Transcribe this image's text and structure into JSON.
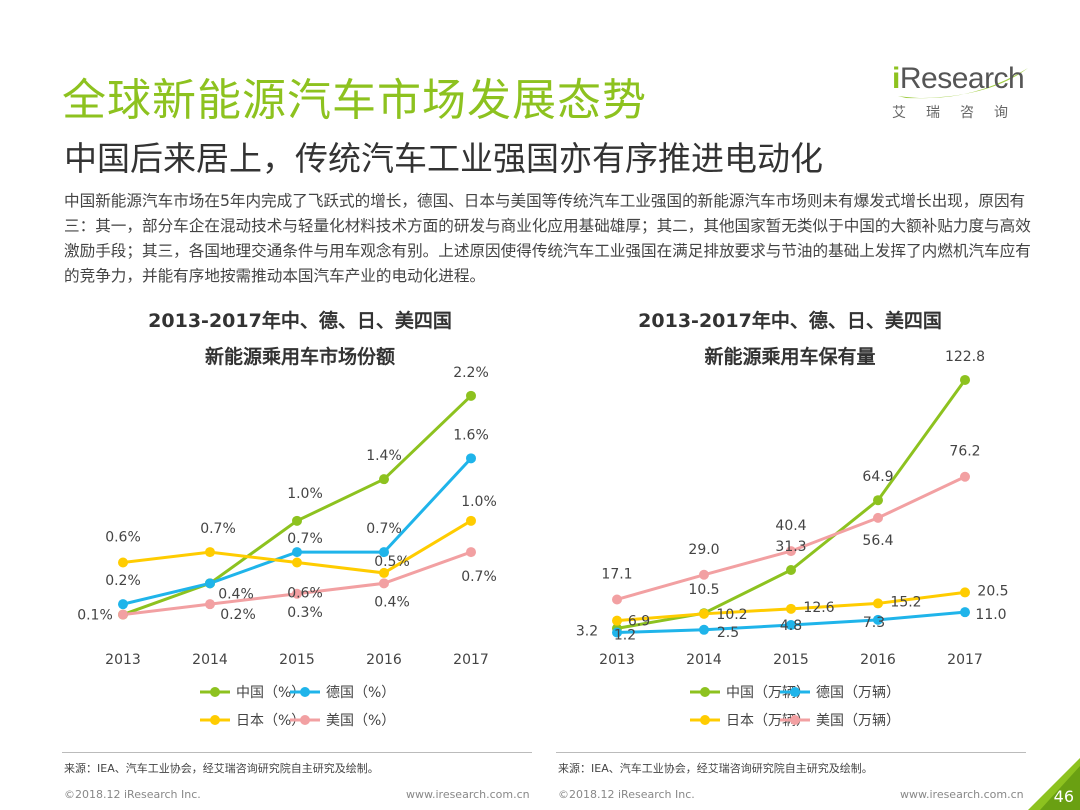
{
  "header": {
    "title": "全球新能源汽车市场发展态势",
    "subtitle": "中国后来居上，传统汽车工业强国亦有序推进电动化"
  },
  "logo": {
    "brand_i": "i",
    "brand_rest": "Research",
    "cn": "艾瑞咨询"
  },
  "body_text": "中国新能源汽车市场在5年内完成了飞跃式的增长，德国、日本与美国等传统汽车工业强国的新能源汽车市场则未有爆发式增长出现，原因有三：其一，部分车企在混动技术与轻量化材料技术方面的研发与商业化应用基础雄厚；其二，其他国家暂无类似于中国的大额补贴力度与高效激励手段；其三，各国地理交通条件与用车观念有别。上述原因使得传统汽车工业强国在满足排放要求与节油的基础上发挥了内燃机汽车应有的竞争力，并能有序地按需推动本国汽车产业的电动化进程。",
  "chart_data": [
    {
      "type": "line",
      "title": "2013-2017年中、德、日、美四国",
      "subtitle": "新能源乘用车市场份额",
      "categories": [
        "2013",
        "2014",
        "2015",
        "2016",
        "2017"
      ],
      "ylim": [
        0,
        2.4
      ],
      "grid": false,
      "legend": "bottom",
      "series": [
        {
          "name": "中国（%）",
          "color": "#8dc21f",
          "values": [
            0.1,
            0.4,
            1.0,
            1.4,
            2.2
          ],
          "labels": [
            "0.1%",
            "0.4%",
            "1.0%",
            "1.4%",
            "2.2%"
          ]
        },
        {
          "name": "德国（%）",
          "color": "#1fb4ea",
          "values": [
            0.2,
            0.4,
            0.7,
            0.7,
            1.6
          ],
          "labels": [
            "0.2%",
            "",
            "0.7%",
            "0.7%",
            "1.6%"
          ]
        },
        {
          "name": "日本（%）",
          "color": "#ffcc00",
          "values": [
            0.6,
            0.7,
            0.6,
            0.5,
            1.0
          ],
          "labels": [
            "0.6%",
            "0.7%",
            "0.6%",
            "0.5%",
            "1.0%"
          ]
        },
        {
          "name": "美国（%）",
          "color": "#f2a0a2",
          "values": [
            0.1,
            0.2,
            0.3,
            0.4,
            0.7
          ],
          "labels": [
            "",
            "0.2%",
            "0.3%",
            "0.4%",
            "0.7%"
          ]
        }
      ]
    },
    {
      "type": "line",
      "title": "2013-2017年中、德、日、美四国",
      "subtitle": "新能源乘用车保有量",
      "categories": [
        "2013",
        "2014",
        "2015",
        "2016",
        "2017"
      ],
      "ylim": [
        0,
        130
      ],
      "grid": false,
      "legend": "bottom",
      "series": [
        {
          "name": "中国（万辆）",
          "color": "#8dc21f",
          "values": [
            3.2,
            10.5,
            31.3,
            64.9,
            122.8
          ],
          "labels": [
            "3.2",
            "10.5",
            "31.3",
            "64.9",
            "122.8"
          ]
        },
        {
          "name": "德国（万辆）",
          "color": "#1fb4ea",
          "values": [
            1.2,
            2.5,
            4.8,
            7.3,
            11.0
          ],
          "labels": [
            "1.2",
            "2.5",
            "4.8",
            "7.3",
            "11.0"
          ]
        },
        {
          "name": "日本（万辆）",
          "color": "#ffcc00",
          "values": [
            6.9,
            10.2,
            12.6,
            15.2,
            20.5
          ],
          "labels": [
            "6.9",
            "10.2",
            "12.6",
            "15.2",
            "20.5"
          ]
        },
        {
          "name": "美国（万辆）",
          "color": "#f2a0a2",
          "values": [
            17.1,
            29.0,
            40.4,
            56.4,
            76.2
          ],
          "labels": [
            "17.1",
            "29.0",
            "40.4",
            "56.4",
            "76.2"
          ]
        }
      ]
    }
  ],
  "footer": {
    "source": "来源：IEA、汽车工业协会，经艾瑞咨询研究院自主研究及绘制。",
    "copyright": "©2018.12 iResearch Inc.",
    "url": "www.iresearch.com.cn",
    "page": "46"
  }
}
